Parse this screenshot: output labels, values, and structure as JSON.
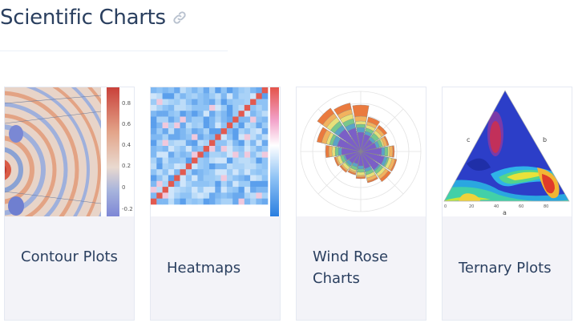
{
  "header": {
    "title": "Scientific Charts",
    "link_icon": "link-icon"
  },
  "cards": [
    {
      "label": "Contour Plots",
      "thumbnail": "contour-plot-thumbnail",
      "colorbar_ticks": [
        "0.8",
        "0.6",
        "0.4",
        "0.2",
        "0",
        "-0.2"
      ]
    },
    {
      "label": "Heatmaps",
      "thumbnail": "heatmap-thumbnail"
    },
    {
      "label": "Wind Rose Charts",
      "thumbnail": "wind-rose-thumbnail"
    },
    {
      "label": "Ternary Plots",
      "thumbnail": "ternary-plot-thumbnail",
      "axis_labels": {
        "a": "a",
        "b": "b",
        "c": "c"
      },
      "tick_labels": [
        "0",
        "20",
        "40",
        "60",
        "80"
      ]
    }
  ],
  "colors": {
    "title": "#2a3f5f",
    "card_background": "#f3f3f8",
    "card_border": "#e5e9f2"
  }
}
